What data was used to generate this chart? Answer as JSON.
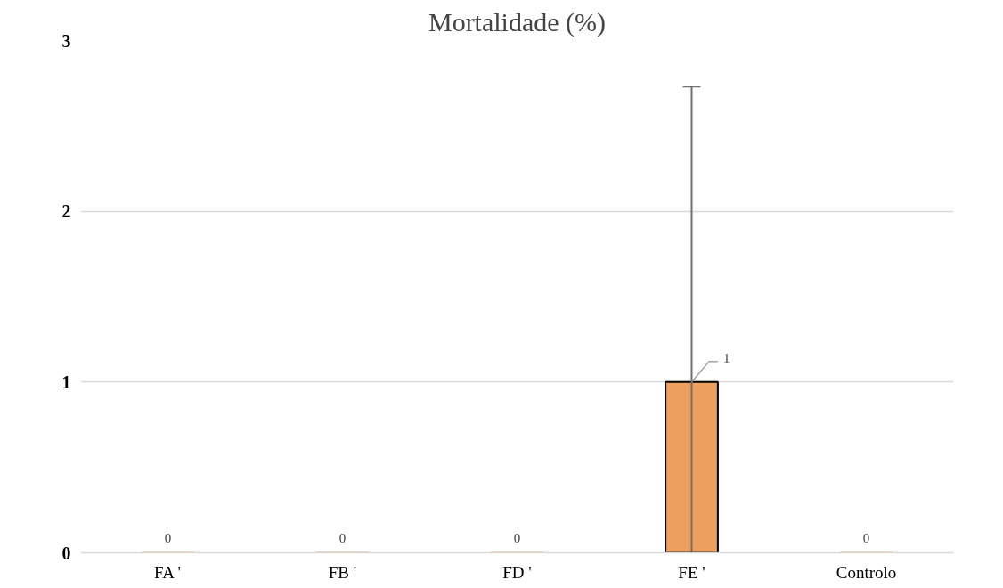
{
  "chart_data": {
    "type": "bar",
    "title": "Mortalidade (%)",
    "categories": [
      "FA '",
      "FB '",
      "FD '",
      "FE '",
      "Controlo"
    ],
    "values": [
      0,
      0,
      0,
      1,
      0
    ],
    "color": "#ed9f5e",
    "errors": [
      null,
      null,
      null,
      [
        0,
        2.73
      ],
      null
    ],
    "ylim": [
      0,
      3
    ],
    "yticks": [
      0,
      1,
      2,
      3
    ],
    "grid": "y",
    "data_labels": true
  }
}
